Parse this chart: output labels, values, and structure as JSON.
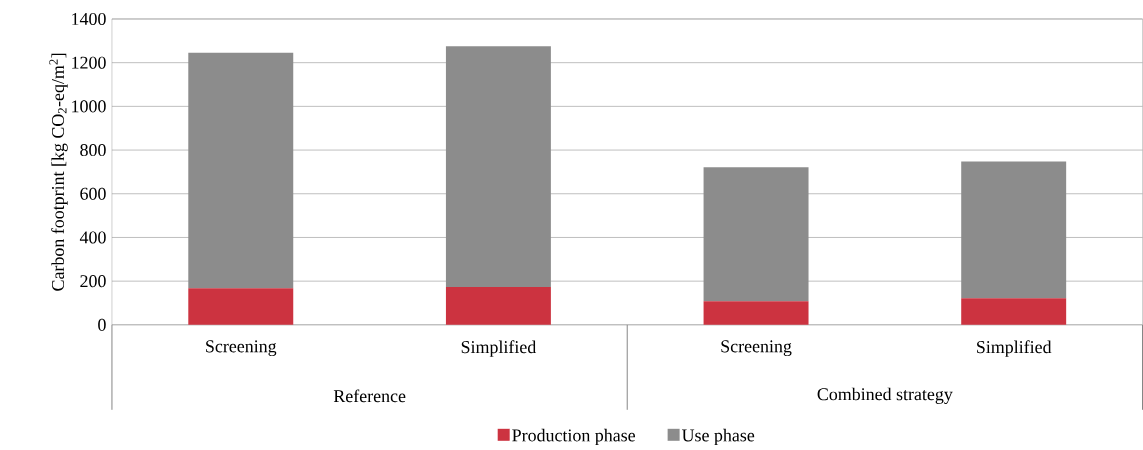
{
  "chart_data": {
    "type": "bar",
    "stacked": true,
    "ylabel": "Carbon footprint [kg CO$_{2}$-eq/m$^{2}$]",
    "categories": [
      "Screening",
      "Simplified",
      "Screening",
      "Simplified"
    ],
    "annotations": [
      "Reference",
      "Combined strategy"
    ],
    "series": [
      {
        "name": "Production phase",
        "color": "#cc3340",
        "values": [
          168,
          173,
          108,
          122
        ]
      },
      {
        "name": "Use phase",
        "color": "#8c8c8c",
        "values": [
          1078,
          1102,
          613,
          626
        ]
      }
    ],
    "ylim": [
      0,
      1400
    ],
    "yticks": [
      0,
      200,
      400,
      600,
      800,
      1000,
      1200,
      1400
    ],
    "grid": "y",
    "legend": "bottom"
  }
}
